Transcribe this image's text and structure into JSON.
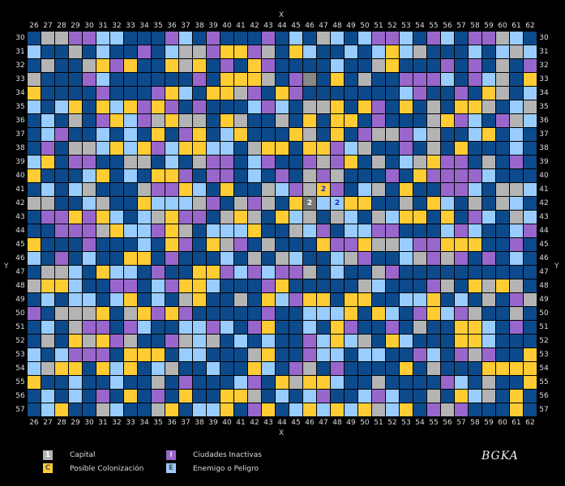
{
  "axis": {
    "x_label": "X",
    "y_label": "Y",
    "columns": [
      "26",
      "27",
      "28",
      "29",
      "30",
      "31",
      "32",
      "33",
      "34",
      "35",
      "36",
      "37",
      "38",
      "39",
      "40",
      "41",
      "42",
      "43",
      "44",
      "45",
      "46",
      "47",
      "48",
      "49",
      "50",
      "51",
      "52",
      "53",
      "54",
      "55",
      "56",
      "57",
      "58",
      "59",
      "60",
      "61",
      "62"
    ],
    "rows": [
      "30",
      "31",
      "32",
      "33",
      "34",
      "35",
      "36",
      "37",
      "38",
      "39",
      "40",
      "41",
      "42",
      "43",
      "44",
      "45",
      "46",
      "47",
      "48",
      "49",
      "50",
      "51",
      "52",
      "53",
      "54",
      "55",
      "56",
      "57"
    ]
  },
  "colors": {
    "empty": "#0d4a8c",
    "colonizacion": "#ffcc33",
    "inactivas": "#9966cc",
    "capital": "#b4b4b4",
    "enemigo": "#99ccff",
    "grid_bg": "#000000"
  },
  "legend": [
    {
      "mark": "1",
      "label": "Capital",
      "color": "#b4b4b4"
    },
    {
      "mark": "C",
      "label": "Posible Colonización",
      "color": "#ffcc33"
    },
    {
      "mark": "I",
      "label": "Ciudades Inactivas",
      "color": "#9966cc"
    },
    {
      "mark": "E",
      "label": "Enemigo o Peligro",
      "color": "#99ccff"
    }
  ],
  "markers": [
    {
      "col": "47",
      "row": "41",
      "text": "2",
      "style": "blue"
    },
    {
      "col": "46",
      "row": "42",
      "text": "2",
      "style": "white"
    },
    {
      "col": "48",
      "row": "42",
      "text": "2",
      "style": "blue"
    }
  ],
  "signature": "BGKA"
}
